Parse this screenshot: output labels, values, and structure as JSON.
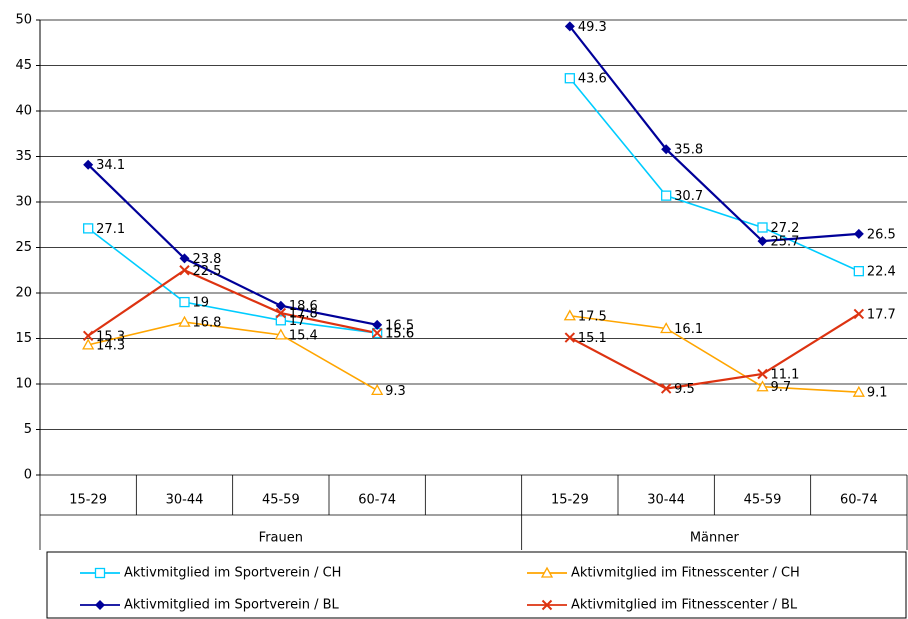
{
  "chart_data": {
    "type": "line",
    "categories": [
      "15-29",
      "30-44",
      "45-59",
      "60-74",
      null,
      "15-29",
      "30-44",
      "45-59",
      "60-74"
    ],
    "groups": [
      "Frauen",
      "Männer"
    ],
    "series": [
      {
        "name": "Aktivmitglied im Sportverein / CH",
        "color": "#00ccff",
        "marker": "square",
        "values": [
          27.1,
          19,
          17,
          15.6,
          null,
          43.6,
          30.7,
          27.2,
          22.4
        ]
      },
      {
        "name": "Aktivmitglied im Fitnesscenter / CH",
        "color": "#ffa500",
        "marker": "triangle",
        "values": [
          14.3,
          16.8,
          15.4,
          9.3,
          null,
          17.5,
          16.1,
          9.7,
          9.1
        ]
      },
      {
        "name": "Aktivmitglied im Sportverein / BL",
        "color": "#000099",
        "marker": "diamond",
        "values": [
          34.1,
          23.8,
          18.6,
          16.5,
          null,
          49.3,
          35.8,
          25.7,
          26.5
        ]
      },
      {
        "name": "Aktivmitglied im Fitnesscenter / BL",
        "color": "#dd3311",
        "marker": "x",
        "values": [
          15.3,
          22.5,
          17.8,
          15.6,
          null,
          15.1,
          9.5,
          11.1,
          17.7
        ]
      }
    ],
    "ylim": [
      0,
      50
    ],
    "yticks": [
      0,
      5,
      10,
      15,
      20,
      25,
      30,
      35,
      40,
      45,
      50
    ],
    "grid": true,
    "legend": "bottom"
  }
}
